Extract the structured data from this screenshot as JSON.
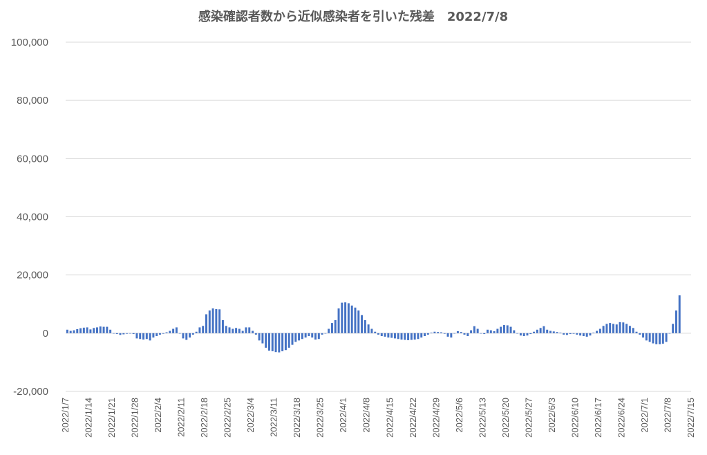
{
  "chart_data": {
    "type": "bar",
    "title": "感染確認者数から近似感染者を引いた残差　2022/7/8",
    "xlabel": "",
    "ylabel": "",
    "ylim": [
      -20000,
      100000
    ],
    "y_ticks": [
      -20000,
      0,
      20000,
      40000,
      60000,
      80000,
      100000
    ],
    "y_tick_labels": [
      "-20,000",
      "0",
      "20,000",
      "40,000",
      "60,000",
      "80,000",
      "100,000"
    ],
    "x_range": [
      "2022/1/7",
      "2022/7/15"
    ],
    "x_tick_labels": [
      "2022/1/7",
      "2022/1/14",
      "2022/1/21",
      "2022/1/28",
      "2022/2/4",
      "2022/2/11",
      "2022/2/18",
      "2022/2/25",
      "2022/3/4",
      "2022/3/11",
      "2022/3/18",
      "2022/3/25",
      "2022/4/1",
      "2022/4/8",
      "2022/4/15",
      "2022/4/22",
      "2022/4/29",
      "2022/5/6",
      "2022/5/13",
      "2022/5/20",
      "2022/5/27",
      "2022/6/3",
      "2022/6/10",
      "2022/6/17",
      "2022/6/24",
      "2022/7/1",
      "2022/7/8",
      "2022/7/15"
    ],
    "grid": true,
    "legend": "none",
    "bar_color": "#4472c4",
    "start_date": "2022/1/7",
    "values": [
      1200,
      800,
      1000,
      1400,
      1700,
      1900,
      2000,
      1300,
      1800,
      2000,
      2300,
      2200,
      2200,
      1200,
      0,
      -300,
      -600,
      -400,
      -200,
      0,
      -300,
      -1800,
      -2000,
      -2200,
      -2000,
      -2500,
      -1500,
      -1000,
      -500,
      -200,
      300,
      800,
      1500,
      2000,
      0,
      -1800,
      -2300,
      -1500,
      -500,
      500,
      2000,
      2500,
      6500,
      7800,
      8500,
      8300,
      8200,
      4500,
      2500,
      2000,
      1500,
      1800,
      1500,
      800,
      2000,
      2000,
      800,
      -500,
      -2500,
      -3500,
      -5000,
      -6000,
      -6200,
      -6500,
      -6600,
      -6200,
      -5800,
      -5000,
      -4000,
      -3000,
      -2500,
      -2000,
      -1500,
      -1000,
      -1500,
      -2200,
      -2000,
      -500,
      0,
      1500,
      3500,
      4500,
      8500,
      10500,
      10600,
      10300,
      9500,
      8800,
      7800,
      6200,
      4500,
      3000,
      1500,
      500,
      -500,
      -1000,
      -1200,
      -1500,
      -1600,
      -1800,
      -2000,
      -2200,
      -2300,
      -2400,
      -2300,
      -2200,
      -2000,
      -1500,
      -1000,
      -500,
      200,
      500,
      400,
      300,
      -200,
      -1200,
      -1500,
      0,
      700,
      400,
      -500,
      -1000,
      1000,
      2400,
      1500,
      0,
      -300,
      1200,
      1000,
      700,
      1500,
      2200,
      2800,
      2700,
      2200,
      1000,
      0,
      -800,
      -1000,
      -800,
      -300,
      500,
      1200,
      1800,
      2400,
      1200,
      800,
      600,
      400,
      200,
      -500,
      -600,
      -300,
      -200,
      -500,
      -800,
      -1000,
      -1200,
      -800,
      200,
      800,
      1500,
      2500,
      3200,
      3500,
      3200,
      3000,
      3800,
      3700,
      3200,
      2500,
      1800,
      500,
      -500,
      -1500,
      -2500,
      -3000,
      -3500,
      -3800,
      -3800,
      -3600,
      -3000,
      0,
      3200,
      7800,
      13000
    ]
  }
}
